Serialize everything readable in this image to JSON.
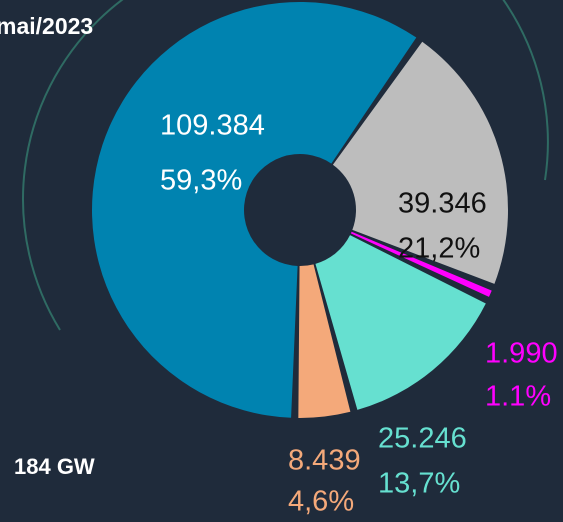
{
  "chart_data": {
    "type": "donut",
    "title": "mai/2023",
    "total_label": "184 GW",
    "values": [
      109384,
      39346,
      1990,
      25246,
      8439
    ],
    "value_labels": [
      "109.384",
      "39.346",
      "1.990",
      "25.246",
      "8.439"
    ],
    "percentages": [
      59.3,
      21.2,
      1.1,
      13.7,
      4.6
    ],
    "percent_labels": [
      "59,3%",
      "21,2%",
      "1.1%",
      "13,7%",
      "4,6%"
    ],
    "colors": [
      "#0083b0",
      "#bdbdbd",
      "#ff00ff",
      "#66e0d0",
      "#f4a97a"
    ],
    "label_colors": [
      "#ffffff",
      "#111111",
      "#ff00ff",
      "#66e0d0",
      "#f4a97a"
    ]
  }
}
